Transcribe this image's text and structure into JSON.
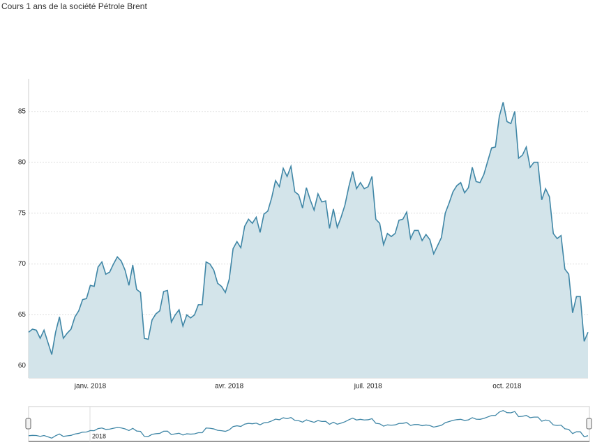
{
  "chart_data": {
    "type": "area",
    "title": "Cours 1 ans de la société Pétrole Brent",
    "categories": [
      null,
      null,
      null,
      null,
      null,
      null,
      null,
      null,
      null,
      null,
      null,
      null,
      null,
      null,
      null,
      null,
      "janv. 2018",
      null,
      null,
      null,
      null,
      null,
      null,
      null,
      null,
      null,
      null,
      null,
      null,
      null,
      null,
      null,
      null,
      null,
      null,
      null,
      null,
      null,
      null,
      null,
      null,
      null,
      null,
      null,
      null,
      null,
      null,
      null,
      null,
      null,
      null,
      null,
      "avr. 2018",
      null,
      null,
      null,
      null,
      null,
      null,
      null,
      null,
      null,
      null,
      null,
      null,
      null,
      null,
      null,
      null,
      null,
      null,
      null,
      null,
      null,
      null,
      null,
      null,
      null,
      null,
      null,
      null,
      null,
      null,
      null,
      null,
      null,
      null,
      null,
      "juil. 2018",
      null,
      null,
      null,
      null,
      null,
      null,
      null,
      null,
      null,
      null,
      null,
      null,
      null,
      null,
      null,
      null,
      null,
      null,
      null,
      null,
      null,
      null,
      null,
      null,
      null,
      null,
      null,
      null,
      null,
      null,
      null,
      null,
      null,
      null,
      null,
      "oct. 2018",
      null,
      null,
      null,
      null,
      null,
      null,
      null,
      null,
      null,
      null,
      null,
      null,
      null,
      null,
      null,
      null,
      null,
      null,
      null,
      null,
      null
    ],
    "series": [
      {
        "color": "#3f86a6",
        "fill": "#d3e4ea",
        "values": [
          63.3,
          63.6,
          63.5,
          62.7,
          63.5,
          62.3,
          61.1,
          63.3,
          64.8,
          62.7,
          63.2,
          63.6,
          64.8,
          65.4,
          66.5,
          66.6,
          67.9,
          67.8,
          69.7,
          70.2,
          69.0,
          69.2,
          70.0,
          70.7,
          70.3,
          69.4,
          67.9,
          69.9,
          67.5,
          67.2,
          62.7,
          62.6,
          64.5,
          65.1,
          65.4,
          67.3,
          67.4,
          64.3,
          65.0,
          65.5,
          63.9,
          65.0,
          64.7,
          65.0,
          66.0,
          66.0,
          70.2,
          70.0,
          69.4,
          68.1,
          67.8,
          67.2,
          68.5,
          71.5,
          72.2,
          71.6,
          73.7,
          74.4,
          74.0,
          74.6,
          73.1,
          74.9,
          75.2,
          76.5,
          78.2,
          77.6,
          79.4,
          78.6,
          79.6,
          77.1,
          76.8,
          75.5,
          77.5,
          76.3,
          75.3,
          76.9,
          76.1,
          76.2,
          73.5,
          75.4,
          73.6,
          74.6,
          75.8,
          77.6,
          79.1,
          77.4,
          78.0,
          77.4,
          77.6,
          78.6,
          74.4,
          74.0,
          71.9,
          73.0,
          72.7,
          73.0,
          74.3,
          74.4,
          75.1,
          72.5,
          73.3,
          73.3,
          72.3,
          72.9,
          72.4,
          71.0,
          71.8,
          72.6,
          75.0,
          76.0,
          77.1,
          77.7,
          78.0,
          77.0,
          77.5,
          79.5,
          78.1,
          78.0,
          78.8,
          80.1,
          81.4,
          81.5,
          84.5,
          85.9,
          84.0,
          83.8,
          85.0,
          80.4,
          80.7,
          81.5,
          79.5,
          80.0,
          80.0,
          76.3,
          77.4,
          76.6,
          73.0,
          72.5,
          72.8,
          69.5,
          69.0,
          65.2,
          66.8,
          66.8,
          62.4,
          63.3
        ]
      }
    ],
    "ylim": [
      58.8,
      88.2
    ],
    "yticks": [
      60,
      65,
      70,
      75,
      80,
      85
    ],
    "grid": true,
    "navigator": {
      "label": "2018"
    }
  }
}
